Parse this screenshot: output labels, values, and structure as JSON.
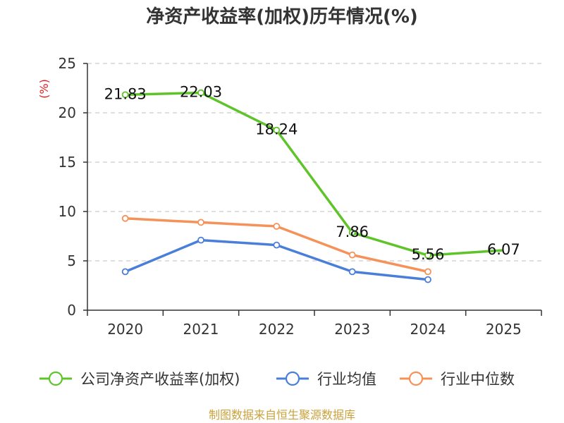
{
  "chart_data": {
    "type": "line",
    "title": "净资产收益率(加权)历年情况(%)",
    "ylabel": "(%)",
    "xlabel": "",
    "categories": [
      "2020",
      "2021",
      "2022",
      "2023",
      "2024",
      "2025"
    ],
    "ylim": [
      0,
      25
    ],
    "yticks": [
      0,
      5,
      10,
      15,
      20,
      25
    ],
    "grid": true,
    "legend_position": "bottom",
    "series": [
      {
        "name": "公司净资产收益率(加权)",
        "color": "#5fc42a",
        "values": [
          21.83,
          22.03,
          18.24,
          7.86,
          5.56,
          6.07
        ],
        "labels": [
          "21.83",
          "22.03",
          "18.24",
          "7.86",
          "5.56",
          "6.07"
        ]
      },
      {
        "name": "行业均值",
        "color": "#4a7fd9",
        "values": [
          3.9,
          7.1,
          6.6,
          3.9,
          3.1,
          null
        ]
      },
      {
        "name": "行业中位数",
        "color": "#f5925a",
        "values": [
          9.3,
          8.9,
          8.5,
          5.6,
          3.9,
          null
        ]
      }
    ]
  },
  "source": "制图数据来自恒生聚源数据库",
  "colors": {
    "unit": "#e02020",
    "source": "#c9a23c",
    "axis": "#333333",
    "grid": "#cccccc"
  }
}
